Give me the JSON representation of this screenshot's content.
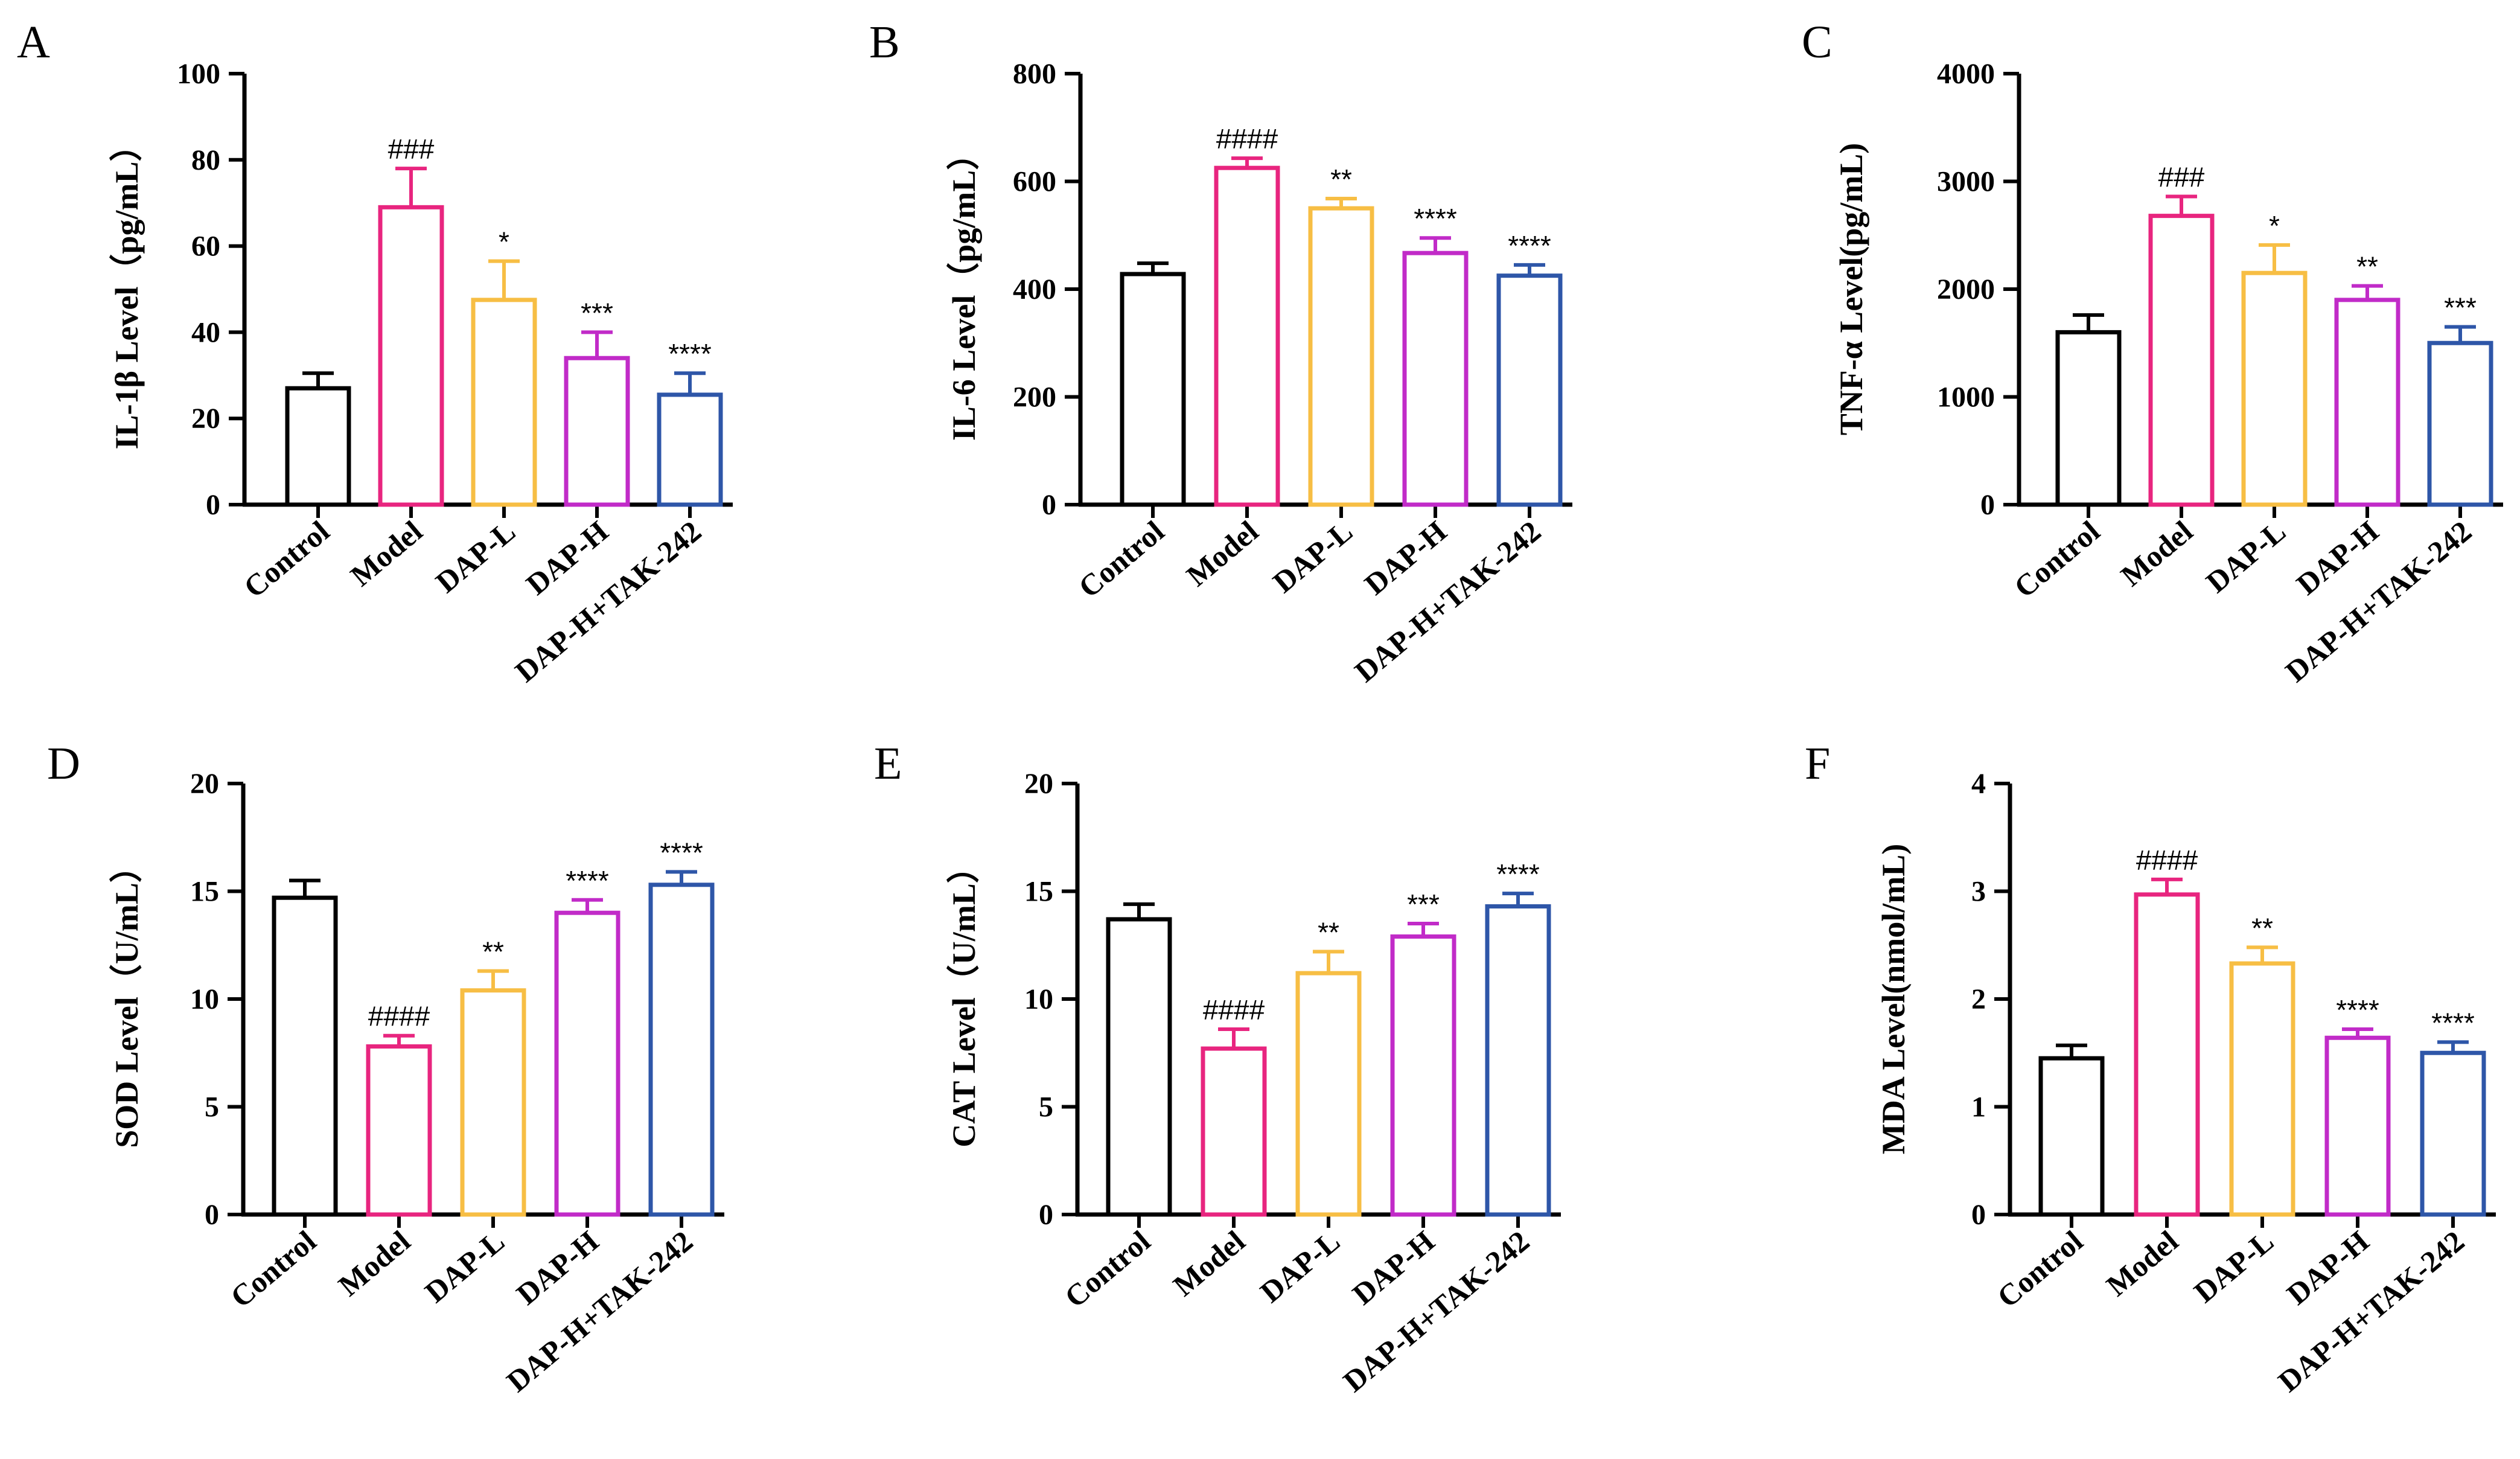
{
  "figure": {
    "description": "Six bar charts of serum cytokine and oxidative-stress levels"
  },
  "groups": [
    "Control",
    "Model",
    "DAP-L",
    "DAP-H",
    "DAP-H+TAK-242"
  ],
  "colors": {
    "Control": "#000000",
    "Model": "#E8257F",
    "DAP-L": "#F7BE44",
    "DAP-H": "#C12BC8",
    "DAP-H+TAK-242": "#2E56A8"
  },
  "chart_data": [
    {
      "panel": "A",
      "type": "bar",
      "title": "",
      "ylabel": "IL-1β Level（pg/mL）",
      "xlabel": "",
      "ylim": [
        0,
        100
      ],
      "yticks": [
        0,
        20,
        40,
        60,
        80,
        100
      ],
      "categories": [
        "Control",
        "Model",
        "DAP-L",
        "DAP-H",
        "DAP-H+TAK-242"
      ],
      "values": [
        27,
        69,
        47.5,
        34,
        25.5
      ],
      "errors": [
        3.5,
        9,
        9,
        6,
        5
      ],
      "annotations": [
        "",
        "###",
        "*",
        "***",
        "****"
      ]
    },
    {
      "panel": "B",
      "type": "bar",
      "title": "",
      "ylabel": "IL-6 Level（pg/mL）",
      "xlabel": "",
      "ylim": [
        0,
        800
      ],
      "yticks": [
        0,
        200,
        400,
        600,
        800
      ],
      "categories": [
        "Control",
        "Model",
        "DAP-L",
        "DAP-H",
        "DAP-H+TAK-242"
      ],
      "values": [
        428,
        625,
        550,
        467,
        425
      ],
      "errors": [
        20,
        18,
        18,
        28,
        20
      ],
      "annotations": [
        "",
        "####",
        "**",
        "****",
        "****"
      ]
    },
    {
      "panel": "C",
      "type": "bar",
      "title": "",
      "ylabel": "TNF-α Level(pg/mL)",
      "xlabel": "",
      "ylim": [
        0,
        4000
      ],
      "yticks": [
        0,
        1000,
        2000,
        3000,
        4000
      ],
      "categories": [
        "Control",
        "Model",
        "DAP-L",
        "DAP-H",
        "DAP-H+TAK-242"
      ],
      "values": [
        1600,
        2680,
        2150,
        1900,
        1500
      ],
      "errors": [
        160,
        180,
        260,
        130,
        150
      ],
      "annotations": [
        "",
        "###",
        "*",
        "**",
        "***"
      ]
    },
    {
      "panel": "D",
      "type": "bar",
      "title": "",
      "ylabel": "SOD Level（U/mL）",
      "xlabel": "",
      "ylim": [
        0,
        20
      ],
      "yticks": [
        0,
        5,
        10,
        15,
        20
      ],
      "categories": [
        "Control",
        "Model",
        "DAP-L",
        "DAP-H",
        "DAP-H+TAK-242"
      ],
      "values": [
        14.7,
        7.8,
        10.4,
        14.0,
        15.3
      ],
      "errors": [
        0.8,
        0.5,
        0.9,
        0.6,
        0.6
      ],
      "annotations": [
        "",
        "####",
        "**",
        "****",
        "****"
      ]
    },
    {
      "panel": "E",
      "type": "bar",
      "title": "",
      "ylabel": "CAT Level（U/mL）",
      "xlabel": "",
      "ylim": [
        0,
        20
      ],
      "yticks": [
        0,
        5,
        10,
        15,
        20
      ],
      "categories": [
        "Control",
        "Model",
        "DAP-L",
        "DAP-H",
        "DAP-H+TAK-242"
      ],
      "values": [
        13.7,
        7.7,
        11.2,
        12.9,
        14.3
      ],
      "errors": [
        0.7,
        0.9,
        1.0,
        0.6,
        0.6
      ],
      "annotations": [
        "",
        "####",
        "**",
        "***",
        "****"
      ]
    },
    {
      "panel": "F",
      "type": "bar",
      "title": "",
      "ylabel": "MDA Level(nmol/mL)",
      "xlabel": "",
      "ylim": [
        0,
        4
      ],
      "yticks": [
        0,
        1,
        2,
        3,
        4
      ],
      "categories": [
        "Control",
        "Model",
        "DAP-L",
        "DAP-H",
        "DAP-H+TAK-242"
      ],
      "values": [
        1.45,
        2.97,
        2.33,
        1.64,
        1.5
      ],
      "errors": [
        0.12,
        0.14,
        0.15,
        0.08,
        0.1
      ],
      "annotations": [
        "",
        "####",
        "**",
        "****",
        "****"
      ]
    }
  ]
}
